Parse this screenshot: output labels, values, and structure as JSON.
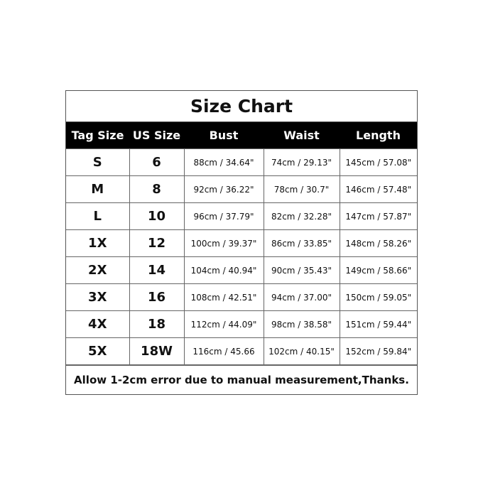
{
  "title": "Size Chart",
  "headers": [
    "Tag Size",
    "US Size",
    "Bust",
    "Waist",
    "Length"
  ],
  "rows": [
    [
      "S",
      "6",
      "88cm / 34.64\"",
      "74cm / 29.13\"",
      "145cm / 57.08\""
    ],
    [
      "M",
      "8",
      "92cm / 36.22\"",
      "78cm / 30.7\"",
      "146cm / 57.48\""
    ],
    [
      "L",
      "10",
      "96cm / 37.79\"",
      "82cm / 32.28\"",
      "147cm / 57.87\""
    ],
    [
      "1X",
      "12",
      "100cm / 39.37\"",
      "86cm / 33.85\"",
      "148cm / 58.26\""
    ],
    [
      "2X",
      "14",
      "104cm / 40.94\"",
      "90cm / 35.43\"",
      "149cm / 58.66\""
    ],
    [
      "3X",
      "16",
      "108cm / 42.51\"",
      "94cm / 37.00\"",
      "150cm / 59.05\""
    ],
    [
      "4X",
      "18",
      "112cm / 44.09\"",
      "98cm / 38.58\"",
      "151cm / 59.44\""
    ],
    [
      "5X",
      "18W",
      "116cm / 45.66",
      "102cm / 40.15\"",
      "152cm / 59.84\""
    ]
  ],
  "footer": "Allow 1-2cm error due to manual measurement,Thanks."
}
